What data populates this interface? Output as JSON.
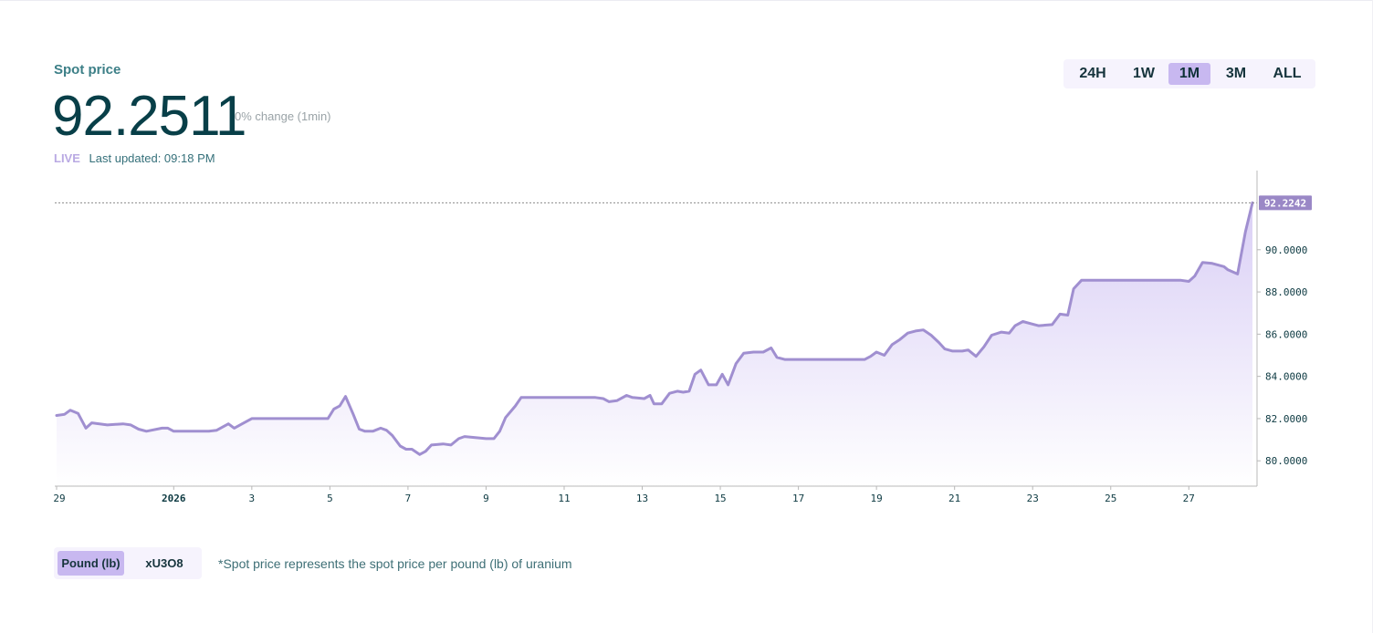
{
  "header": {
    "title": "Spot price",
    "price": "92.2511",
    "change": "0% change (1min)",
    "live_label": "LIVE",
    "last_updated": "Last updated: 09:18 PM"
  },
  "range_selector": {
    "options": [
      "24H",
      "1W",
      "1M",
      "3M",
      "ALL"
    ],
    "selected": "1M"
  },
  "unit_toggle": {
    "options": [
      "Pound (lb)",
      "xU3O8"
    ],
    "selected": "Pound (lb)"
  },
  "footnote": "*Spot price represents the spot price per pound (lb) of uranium",
  "colors": {
    "line": "#a08fd0",
    "fill_top": "#d8cdf5",
    "fill_bottom": "#ffffff",
    "current_badge": "#9a88c6",
    "axis_text": "#0d3a42"
  },
  "chart_data": {
    "type": "area",
    "title": "",
    "xlabel": "",
    "ylabel": "",
    "ylim": [
      78.8,
      93.75
    ],
    "y_ticks": [
      "80.0000",
      "82.0000",
      "84.0000",
      "86.0000",
      "88.0000",
      "90.0000"
    ],
    "x_ticks": [
      {
        "label": "29",
        "x": 0
      },
      {
        "label": "2026",
        "x": 3
      },
      {
        "label": "3",
        "x": 5
      },
      {
        "label": "5",
        "x": 7
      },
      {
        "label": "7",
        "x": 9
      },
      {
        "label": "9",
        "x": 11
      },
      {
        "label": "11",
        "x": 13
      },
      {
        "label": "13",
        "x": 15
      },
      {
        "label": "15",
        "x": 17
      },
      {
        "label": "17",
        "x": 19
      },
      {
        "label": "19",
        "x": 21
      },
      {
        "label": "21",
        "x": 23
      },
      {
        "label": "23",
        "x": 25
      },
      {
        "label": "25",
        "x": 27
      },
      {
        "label": "27",
        "x": 29
      }
    ],
    "x_range": [
      -0.05,
      30.63
    ],
    "current_value": "92.2242",
    "current_value_num": 92.2242,
    "series": [
      {
        "points": [
          [
            0.0,
            82.15
          ],
          [
            0.2,
            82.2
          ],
          [
            0.35,
            82.4
          ],
          [
            0.55,
            82.25
          ],
          [
            0.75,
            81.55
          ],
          [
            0.9,
            81.8
          ],
          [
            1.3,
            81.7
          ],
          [
            1.7,
            81.75
          ],
          [
            1.9,
            81.7
          ],
          [
            2.1,
            81.5
          ],
          [
            2.3,
            81.4
          ],
          [
            2.7,
            81.55
          ],
          [
            2.85,
            81.55
          ],
          [
            3.0,
            81.4
          ],
          [
            3.5,
            81.4
          ],
          [
            3.9,
            81.4
          ],
          [
            4.1,
            81.45
          ],
          [
            4.4,
            81.75
          ],
          [
            4.55,
            81.55
          ],
          [
            4.75,
            81.75
          ],
          [
            5.0,
            82.0
          ],
          [
            5.5,
            82.0
          ],
          [
            6.0,
            82.0
          ],
          [
            6.5,
            82.0
          ],
          [
            6.95,
            82.0
          ],
          [
            7.1,
            82.45
          ],
          [
            7.25,
            82.6
          ],
          [
            7.4,
            83.05
          ],
          [
            7.6,
            82.2
          ],
          [
            7.75,
            81.5
          ],
          [
            7.9,
            81.4
          ],
          [
            8.1,
            81.4
          ],
          [
            8.3,
            81.55
          ],
          [
            8.45,
            81.45
          ],
          [
            8.6,
            81.2
          ],
          [
            8.8,
            80.7
          ],
          [
            8.95,
            80.55
          ],
          [
            9.1,
            80.55
          ],
          [
            9.3,
            80.3
          ],
          [
            9.45,
            80.45
          ],
          [
            9.6,
            80.75
          ],
          [
            9.9,
            80.8
          ],
          [
            10.1,
            80.75
          ],
          [
            10.3,
            81.05
          ],
          [
            10.45,
            81.15
          ],
          [
            11.0,
            81.05
          ],
          [
            11.2,
            81.05
          ],
          [
            11.35,
            81.4
          ],
          [
            11.5,
            82.05
          ],
          [
            11.75,
            82.6
          ],
          [
            11.9,
            83.0
          ],
          [
            12.3,
            83.0
          ],
          [
            13.0,
            83.0
          ],
          [
            13.8,
            83.0
          ],
          [
            14.0,
            82.95
          ],
          [
            14.15,
            82.8
          ],
          [
            14.35,
            82.85
          ],
          [
            14.6,
            83.1
          ],
          [
            14.75,
            83.0
          ],
          [
            15.05,
            82.95
          ],
          [
            15.2,
            83.1
          ],
          [
            15.3,
            82.7
          ],
          [
            15.5,
            82.7
          ],
          [
            15.7,
            83.2
          ],
          [
            15.9,
            83.3
          ],
          [
            16.05,
            83.25
          ],
          [
            16.2,
            83.3
          ],
          [
            16.35,
            84.1
          ],
          [
            16.5,
            84.3
          ],
          [
            16.7,
            83.6
          ],
          [
            16.9,
            83.6
          ],
          [
            17.05,
            84.1
          ],
          [
            17.2,
            83.6
          ],
          [
            17.4,
            84.6
          ],
          [
            17.6,
            85.1
          ],
          [
            17.85,
            85.15
          ],
          [
            18.1,
            85.15
          ],
          [
            18.3,
            85.35
          ],
          [
            18.45,
            84.9
          ],
          [
            18.65,
            84.8
          ],
          [
            19.0,
            84.8
          ],
          [
            19.6,
            84.8
          ],
          [
            20.2,
            84.8
          ],
          [
            20.7,
            84.8
          ],
          [
            20.85,
            84.95
          ],
          [
            21.0,
            85.15
          ],
          [
            21.2,
            85.0
          ],
          [
            21.4,
            85.5
          ],
          [
            21.6,
            85.75
          ],
          [
            21.8,
            86.05
          ],
          [
            22.0,
            86.15
          ],
          [
            22.2,
            86.2
          ],
          [
            22.4,
            85.95
          ],
          [
            22.6,
            85.6
          ],
          [
            22.75,
            85.3
          ],
          [
            22.95,
            85.2
          ],
          [
            23.2,
            85.2
          ],
          [
            23.35,
            85.25
          ],
          [
            23.55,
            84.95
          ],
          [
            23.75,
            85.4
          ],
          [
            23.95,
            85.95
          ],
          [
            24.2,
            86.1
          ],
          [
            24.4,
            86.05
          ],
          [
            24.55,
            86.4
          ],
          [
            24.75,
            86.6
          ],
          [
            24.95,
            86.5
          ],
          [
            25.15,
            86.4
          ],
          [
            25.5,
            86.45
          ],
          [
            25.7,
            86.95
          ],
          [
            25.9,
            86.9
          ],
          [
            26.05,
            88.15
          ],
          [
            26.25,
            88.55
          ],
          [
            26.7,
            88.55
          ],
          [
            27.3,
            88.55
          ],
          [
            27.8,
            88.55
          ],
          [
            28.5,
            88.55
          ],
          [
            28.8,
            88.55
          ],
          [
            29.0,
            88.5
          ],
          [
            29.15,
            88.75
          ],
          [
            29.35,
            89.4
          ],
          [
            29.6,
            89.35
          ],
          [
            29.9,
            89.2
          ],
          [
            30.0,
            89.05
          ],
          [
            30.25,
            88.85
          ],
          [
            30.45,
            90.85
          ],
          [
            30.63,
            92.2242
          ]
        ]
      }
    ]
  }
}
